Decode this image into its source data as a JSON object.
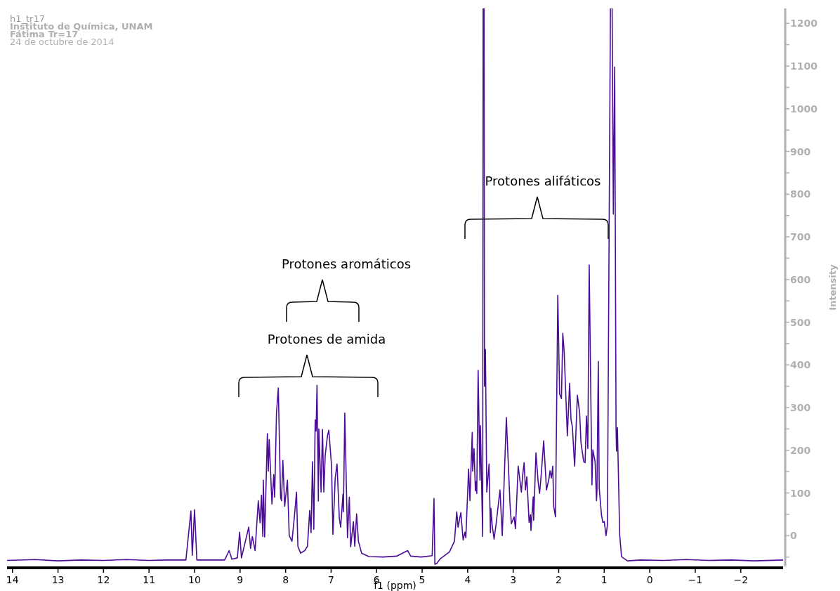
{
  "chart_data": {
    "type": "line",
    "title": "h1_tr17",
    "xlabel": "f1 (ppm)",
    "ylabel": "Intensity",
    "annotations": [
      "Instituto de Química, UNAM",
      "Fátima Tr=17",
      "24 de octubre de 2014",
      "Protones alifáticos",
      "Protones aromáticos",
      "Protones de amida"
    ],
    "xlim": [
      14.12,
      -2.93
    ],
    "ylim": [
      -72,
      1235
    ],
    "xticks": [
      14,
      13,
      12,
      11,
      10,
      9,
      8,
      7,
      6,
      5,
      4,
      3,
      2,
      1,
      0,
      {
        "value": -1,
        "label": "−1"
      },
      {
        "value": -2,
        "label": "−2"
      }
    ],
    "yticks": [
      {
        "value": -50,
        "label": null
      },
      0,
      {
        "value": 50,
        "label": null
      },
      100,
      {
        "value": 150,
        "label": null
      },
      200,
      {
        "value": 250,
        "label": null
      },
      300,
      {
        "value": 350,
        "label": null
      },
      400,
      {
        "value": 450,
        "label": null
      },
      500,
      {
        "value": 550,
        "label": null
      },
      600,
      {
        "value": 650,
        "label": null
      },
      700,
      {
        "value": 750,
        "label": null
      },
      800,
      {
        "value": 850,
        "label": null
      },
      900,
      {
        "value": 950,
        "label": null
      },
      1000,
      {
        "value": 1050,
        "label": null
      },
      1100,
      {
        "value": 1150,
        "label": null
      },
      1200
    ],
    "grid": false,
    "series": [
      {
        "color": "#4b0c96",
        "x": [
          14.12,
          13.5,
          13,
          12.5,
          12,
          11.5,
          11,
          10.6,
          10.19,
          10.08,
          10.05,
          10.0,
          9.95,
          9.34,
          9.24,
          9.18,
          9.06,
          9.01,
          8.97,
          8.81,
          8.77,
          8.73,
          8.67,
          8.6,
          8.56,
          8.53,
          8.5,
          8.49,
          8.46,
          8.4,
          8.38,
          8.36,
          8.3,
          8.26,
          8.24,
          8.2,
          8.16,
          8.11,
          8.09,
          8.06,
          8.02,
          7.96,
          7.92,
          7.86,
          7.81,
          7.76,
          7.73,
          7.67,
          7.58,
          7.52,
          7.47,
          7.44,
          7.41,
          7.38,
          7.35,
          7.33,
          7.31,
          7.28,
          7.27,
          7.22,
          7.19,
          7.16,
          7.13,
          7.08,
          7.05,
          6.99,
          6.96,
          6.91,
          6.87,
          6.82,
          6.79,
          6.74,
          6.73,
          6.7,
          6.64,
          6.6,
          6.57,
          6.51,
          6.48,
          6.44,
          6.4,
          6.33,
          6.17,
          5.86,
          5.56,
          5.32,
          5.25,
          5.02,
          4.78,
          4.74,
          4.72,
          4.68,
          4.6,
          4.4,
          4.29,
          4.24,
          4.21,
          4.15,
          4.1,
          4.06,
          4.04,
          3.98,
          3.95,
          3.9,
          3.89,
          3.86,
          3.83,
          3.81,
          3.8,
          3.77,
          3.73,
          3.72,
          3.67,
          3.66,
          3.64,
          3.63,
          3.61,
          3.58,
          3.53,
          3.5,
          3.49,
          3.46,
          3.42,
          3.38,
          3.29,
          3.24,
          3.15,
          3.07,
          3.04,
          2.98,
          2.95,
          2.89,
          2.82,
          2.79,
          2.76,
          2.73,
          2.7,
          2.65,
          2.62,
          2.61,
          2.56,
          2.55,
          2.5,
          2.45,
          2.42,
          2.39,
          2.33,
          2.28,
          2.27,
          2.22,
          2.19,
          2.16,
          2.13,
          2.11,
          2.07,
          2.02,
          1.98,
          1.94,
          1.91,
          1.88,
          1.81,
          1.76,
          1.73,
          1.7,
          1.65,
          1.59,
          1.54,
          1.51,
          1.45,
          1.42,
          1.39,
          1.36,
          1.33,
          1.27,
          1.25,
          1.2,
          1.17,
          1.16,
          1.13,
          1.11,
          1.06,
          1.03,
          1.0,
          0.96,
          0.93,
          0.86,
          0.83,
          0.8,
          0.77,
          0.74,
          0.73,
          0.71,
          0.66,
          0.62,
          0.49,
          0.2,
          -0.3,
          -0.8,
          -1.3,
          -1.8,
          -2.3,
          -2.93
        ],
        "values": [
          -58,
          -56,
          -59,
          -57,
          -58,
          -56,
          -58,
          -57,
          -57,
          58,
          -46,
          61,
          -57,
          -57,
          -35,
          -55,
          -52,
          8,
          -52,
          20,
          -30,
          -2,
          -35,
          82,
          30,
          95,
          -2,
          130,
          -3,
          239,
          151,
          225,
          74,
          143,
          90,
          288,
          346,
          89,
          82,
          176,
          69,
          130,
          0,
          -13,
          41,
          102,
          -25,
          -41,
          -35,
          -25,
          59,
          7,
          173,
          15,
          271,
          245,
          352,
          81,
          250,
          102,
          249,
          102,
          188,
          234,
          247,
          163,
          3,
          135,
          168,
          41,
          20,
          97,
          56,
          287,
          -5,
          90,
          -26,
          33,
          -25,
          51,
          -13,
          -41,
          -49,
          -50,
          -48,
          -35,
          -48,
          -50,
          -47,
          87,
          -67,
          -65,
          -54,
          -38,
          -13,
          56,
          20,
          54,
          -10,
          8,
          -5,
          156,
          82,
          242,
          151,
          204,
          105,
          127,
          99,
          387,
          130,
          258,
          -2,
          null,
          null,
          350,
          436,
          102,
          168,
          7,
          64,
          23,
          -8,
          23,
          107,
          0,
          277,
          74,
          28,
          44,
          16,
          163,
          102,
          143,
          171,
          107,
          138,
          31,
          49,
          12,
          91,
          36,
          194,
          124,
          99,
          135,
          222,
          130,
          107,
          130,
          152,
          135,
          163,
          69,
          44,
          563,
          332,
          321,
          474,
          431,
          234,
          357,
          272,
          255,
          163,
          329,
          288,
          217,
          173,
          171,
          280,
          204,
          634,
          119,
          201,
          173,
          82,
          105,
          408,
          112,
          48,
          31,
          33,
          0,
          25,
          null,
          null,
          753,
          1098,
          250,
          198,
          253,
          2,
          -49,
          -59,
          -57,
          -58,
          -56,
          -58,
          -57,
          -59,
          -57
        ]
      }
    ]
  }
}
